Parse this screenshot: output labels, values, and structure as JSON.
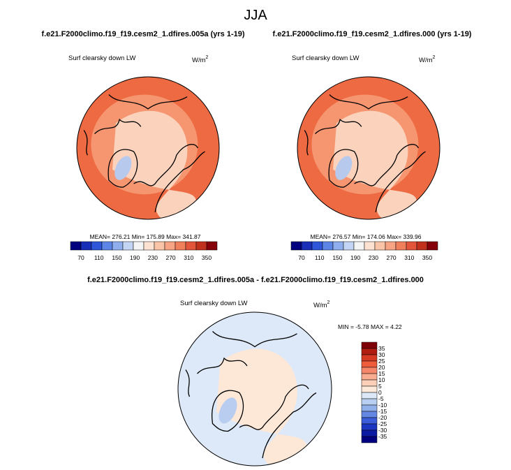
{
  "title": "JJA",
  "panels": [
    {
      "case": "f.e21.F2000climo.f19_f19.cesm2_1.dfires.005a (yrs 1-19)",
      "variable": "Surf clearsky down LW",
      "units": "W/m",
      "units_exp": "2",
      "stats": "MEAN= 276.21  Min= 175.89  Max= 341.87"
    },
    {
      "case": "f.e21.F2000climo.f19_f19.cesm2_1.dfires.000 (yrs 1-19)",
      "variable": "Surf clearsky down LW",
      "units": "W/m",
      "units_exp": "2",
      "stats": "MEAN= 276.57  Min= 174.06  Max= 339.96"
    },
    {
      "case": "f.e21.F2000climo.f19_f19.cesm2_1.dfires.005a - f.e21.F2000climo.f19_f19.cesm2_1.dfires.000",
      "variable": "Surf clearsky down LW",
      "units": "W/m",
      "units_exp": "2",
      "stats": "MIN = -5.78  MAX =   4.22"
    }
  ],
  "colorbar_top": [
    70,
    110,
    150,
    190,
    230,
    270,
    310,
    350
  ],
  "colorbar_diff": [
    35,
    30,
    25,
    20,
    15,
    10,
    5,
    0,
    -5,
    -10,
    -15,
    -20,
    -25,
    -30,
    -35
  ]
}
